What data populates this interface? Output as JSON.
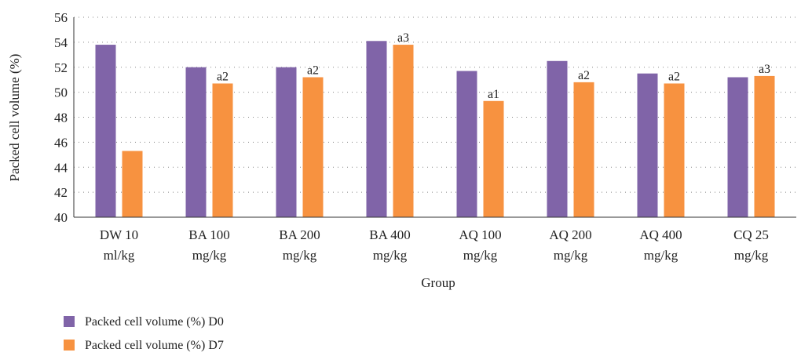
{
  "chart_data": {
    "type": "bar",
    "categories": [
      [
        "DW 10",
        "ml/kg"
      ],
      [
        "BA 100",
        "mg/kg"
      ],
      [
        "BA 200",
        "mg/kg"
      ],
      [
        "BA 400",
        "mg/kg"
      ],
      [
        "AQ 100",
        "mg/kg"
      ],
      [
        "AQ 200",
        "mg/kg"
      ],
      [
        "AQ 400",
        "mg/kg"
      ],
      [
        "CQ 25",
        "mg/kg"
      ]
    ],
    "series": [
      {
        "name": "Packed cell volume (%) D0",
        "color": "#8064a8",
        "values": [
          53.8,
          52.0,
          52.0,
          54.1,
          51.7,
          52.5,
          51.5,
          51.2
        ],
        "labels": [
          "",
          "",
          "",
          "",
          "",
          "",
          "",
          ""
        ]
      },
      {
        "name": "Packed cell volume (%) D7",
        "color": "#f79240",
        "values": [
          45.3,
          50.7,
          51.2,
          53.8,
          49.3,
          50.8,
          50.7,
          51.3
        ],
        "labels": [
          "",
          "a2",
          "a2",
          "a3",
          "a1",
          "a2",
          "a2",
          "a3"
        ]
      }
    ],
    "xlabel": "Group",
    "ylabel": "Packed cell volume (%)",
    "ylim": [
      40,
      56
    ],
    "yticks": [
      40,
      42,
      44,
      46,
      48,
      50,
      52,
      54,
      56
    ],
    "grid": true,
    "legend_position": "bottom-left"
  }
}
